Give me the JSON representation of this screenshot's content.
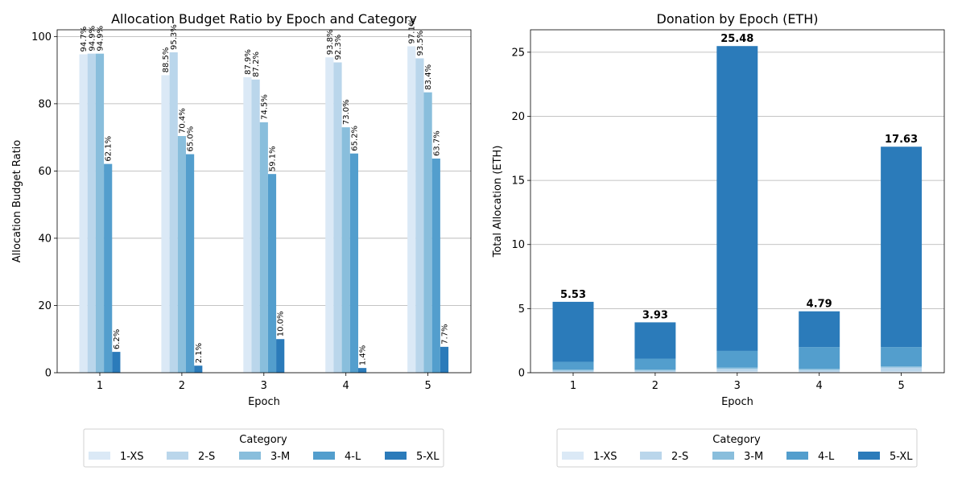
{
  "colors": {
    "1-XS": "#dbe9f6",
    "2-S": "#bad6eb",
    "3-M": "#89bedc",
    "4-L": "#539ecd",
    "5-XL": "#2b7bba"
  },
  "chart_data": [
    {
      "type": "bar",
      "title": "Allocation Budget Ratio by Epoch and Category",
      "xlabel": "Epoch",
      "ylabel": "Allocation Budget Ratio",
      "categories": [
        "1",
        "2",
        "3",
        "4",
        "5"
      ],
      "ylim": [
        0,
        102
      ],
      "yticks": [
        0,
        20,
        40,
        60,
        80,
        100
      ],
      "grid": "y",
      "series": [
        {
          "name": "1-XS",
          "values": [
            94.7,
            88.5,
            87.9,
            93.8,
            97.1
          ],
          "labels": [
            "94.7%",
            "88.5%",
            "87.9%",
            "93.8%",
            "97.1%"
          ]
        },
        {
          "name": "2-S",
          "values": [
            94.9,
            95.3,
            87.2,
            92.3,
            93.5
          ],
          "labels": [
            "94.9%",
            "95.3%",
            "87.2%",
            "92.3%",
            "93.5%"
          ]
        },
        {
          "name": "3-M",
          "values": [
            94.9,
            70.4,
            74.5,
            73.0,
            83.4
          ],
          "labels": [
            "94.9%",
            "70.4%",
            "74.5%",
            "73.0%",
            "83.4%"
          ]
        },
        {
          "name": "4-L",
          "values": [
            62.1,
            65.0,
            59.1,
            65.2,
            63.7
          ],
          "labels": [
            "62.1%",
            "65.0%",
            "59.1%",
            "65.2%",
            "63.7%"
          ]
        },
        {
          "name": "5-XL",
          "values": [
            6.2,
            2.1,
            10.0,
            1.4,
            7.7
          ],
          "labels": [
            "6.2%",
            "2.1%",
            "10.0%",
            "1.4%",
            "7.7%"
          ]
        }
      ],
      "legend": {
        "title": "Category",
        "placement": "bottom-center"
      }
    },
    {
      "type": "bar",
      "stacked": true,
      "title": "Donation by Epoch (ETH)",
      "xlabel": "Epoch",
      "ylabel": "Total Allocation (ETH)",
      "categories": [
        "1",
        "2",
        "3",
        "4",
        "5"
      ],
      "ylim": [
        0,
        26.75
      ],
      "yticks": [
        0,
        5,
        10,
        15,
        20,
        25
      ],
      "grid": "y",
      "series": [
        {
          "name": "1-XS",
          "values": [
            0.05,
            0.05,
            0.1,
            0.05,
            0.1
          ]
        },
        {
          "name": "2-S",
          "values": [
            0.1,
            0.1,
            0.2,
            0.15,
            0.3
          ]
        },
        {
          "name": "3-M",
          "values": [
            0.1,
            0.1,
            0.1,
            0.1,
            0.1
          ]
        },
        {
          "name": "4-L",
          "values": [
            0.6,
            0.85,
            1.3,
            1.7,
            1.5
          ]
        },
        {
          "name": "5-XL",
          "values": [
            4.68,
            2.83,
            23.78,
            2.79,
            15.63
          ]
        }
      ],
      "totals": [
        5.53,
        3.93,
        25.48,
        4.79,
        17.63
      ],
      "total_labels": [
        "5.53",
        "3.93",
        "25.48",
        "4.79",
        "17.63"
      ],
      "legend": {
        "title": "Category",
        "placement": "bottom-center"
      }
    }
  ]
}
